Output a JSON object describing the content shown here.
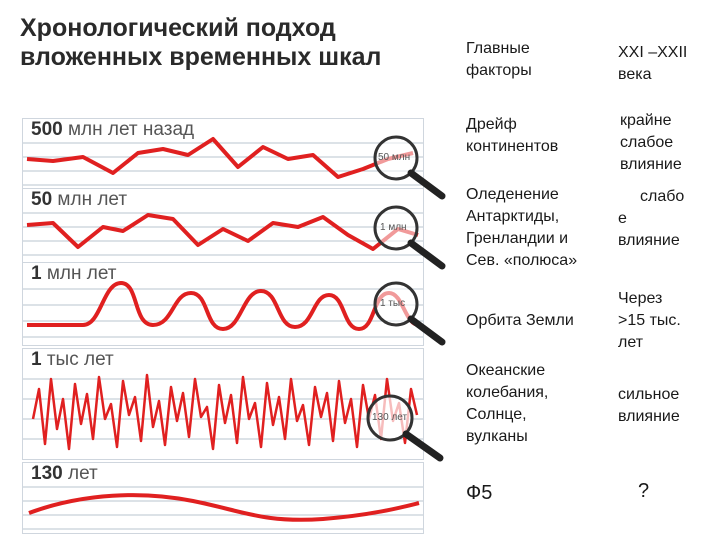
{
  "title_line1": "Хронологический подход",
  "title_line2": "вложенных временных шкал",
  "scales": [
    {
      "num": "500",
      "unit": "млн лет назад",
      "lens": "50 млн"
    },
    {
      "num": "50",
      "unit": "млн лет",
      "lens": "1 млн"
    },
    {
      "num": "1",
      "unit": "млн лет",
      "lens": "1 тыс"
    },
    {
      "num": "1",
      "unit": "тыс лет",
      "lens": "130 лет"
    },
    {
      "num": "130",
      "unit": "лет",
      "lens": ""
    }
  ],
  "header": {
    "factors": [
      "Главные",
      "факторы"
    ],
    "century": [
      "XXI –XXII",
      "века"
    ]
  },
  "rows": [
    {
      "factor": [
        "Дрейф",
        "континентов"
      ],
      "influence": [
        "крайне",
        "слабое",
        "влияние"
      ]
    },
    {
      "factor": [
        "Оледенение",
        "Антарктиды,",
        "Гренландии и",
        "Сев. «полюса»"
      ],
      "influence": [
        "слабо",
        "е",
        "влияние"
      ]
    },
    {
      "factor": [
        "Орбита Земли"
      ],
      "influence": [
        "Через",
        ">15 тыс.",
        "лет"
      ]
    },
    {
      "factor": [
        "Океанские",
        "колебания,",
        "Солнце,",
        "вулканы"
      ],
      "influence": [
        "сильное",
        "влияние"
      ]
    },
    {
      "factor": [
        "Ф5"
      ],
      "influence": [
        "?"
      ]
    }
  ],
  "colors": {
    "curve": "#e02020",
    "grid": "#b9c4cf",
    "border": "#cfd6de"
  }
}
